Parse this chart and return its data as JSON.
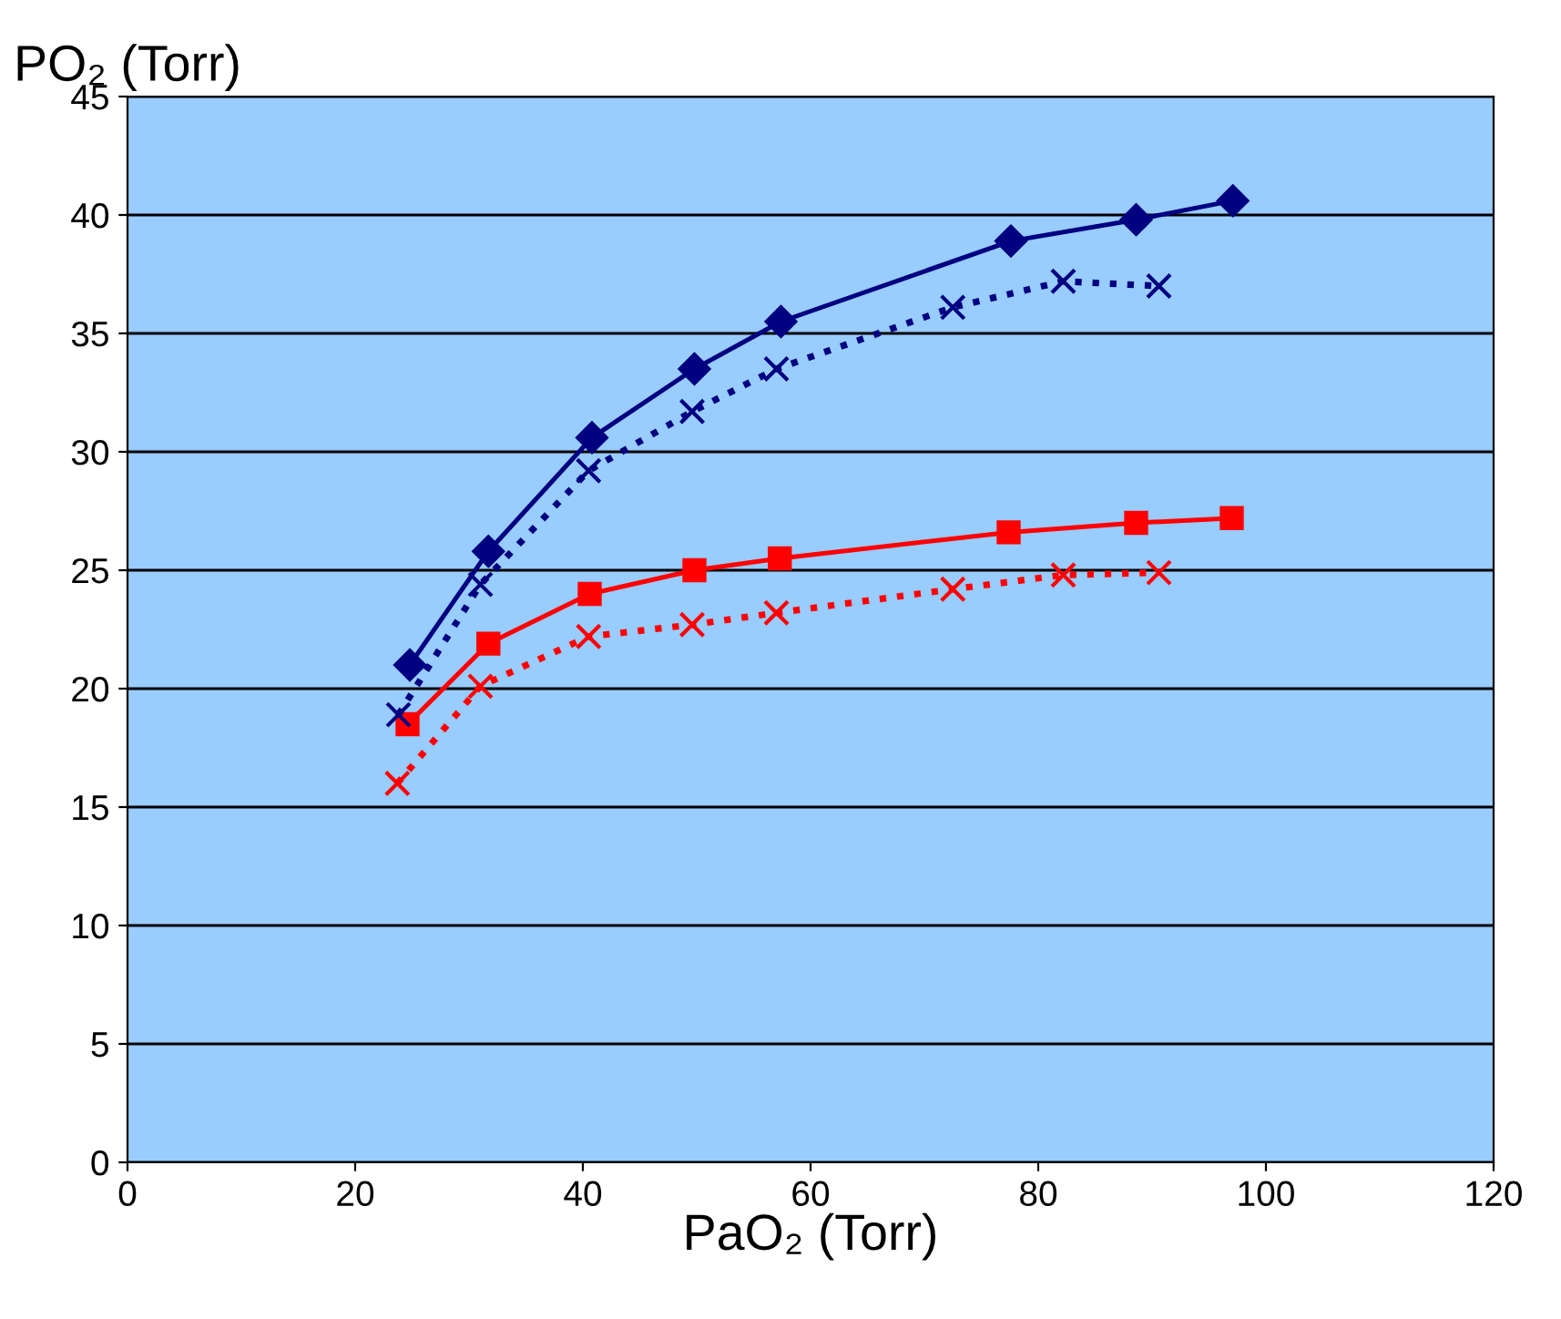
{
  "chart_data": {
    "type": "line",
    "xlabel": "PaO₂ (Torr)",
    "ylabel": "PO₂ (Torr)",
    "xlim": [
      0,
      120
    ],
    "xticks": [
      0,
      20,
      40,
      60,
      80,
      100,
      120
    ],
    "ylim": [
      0,
      45
    ],
    "yticks": [
      0,
      5,
      10,
      15,
      20,
      25,
      30,
      35,
      40,
      45
    ],
    "grid": "y",
    "legend": false,
    "series": [
      {
        "color": "#000080",
        "marker": "diamond",
        "line_style": "solid",
        "x": [
          24.8,
          31.7,
          40.8,
          49.8,
          57.4,
          77.6,
          88.6,
          97.1
        ],
        "values": [
          21.0,
          25.8,
          30.6,
          33.5,
          35.5,
          38.9,
          39.8,
          40.6
        ]
      },
      {
        "color": "#000080",
        "marker": "cross",
        "line_style": "dotted",
        "x": [
          23.8,
          31.0,
          40.5,
          49.6,
          57.0,
          72.5,
          82.2,
          90.6
        ],
        "values": [
          18.9,
          24.4,
          29.2,
          31.7,
          33.5,
          36.1,
          37.2,
          37.0
        ]
      },
      {
        "color": "#ff0000",
        "marker": "square",
        "line_style": "solid",
        "x": [
          24.6,
          31.7,
          40.6,
          49.8,
          57.3,
          77.4,
          88.6,
          97.0
        ],
        "values": [
          18.5,
          21.9,
          24.0,
          25.0,
          25.5,
          26.6,
          27.0,
          27.2
        ]
      },
      {
        "color": "#ff0000",
        "marker": "cross",
        "line_style": "dotted",
        "x": [
          23.7,
          31.0,
          40.5,
          49.6,
          57.0,
          72.5,
          82.2,
          90.6
        ],
        "values": [
          16.0,
          20.1,
          22.2,
          22.7,
          23.2,
          24.2,
          24.8,
          24.9
        ]
      }
    ]
  }
}
